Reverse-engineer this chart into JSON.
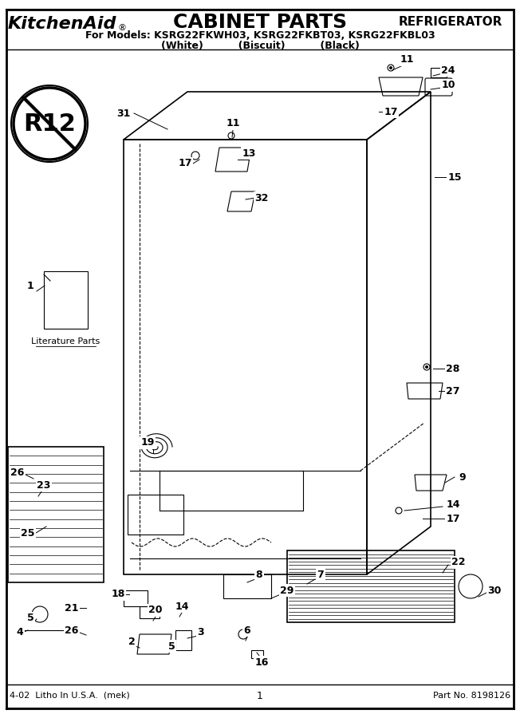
{
  "title": "CABINET PARTS",
  "brand": "KitchenAid.",
  "category": "REFRIGERATOR",
  "subtitle": "For Models: KSRG22FKWH03, KSRG22FKBT03, KSRG22FKBL03",
  "subtitle2": "(White)          (Biscuit)          (Black)",
  "footer_left": "4-02  Litho In U.S.A.  (mek)",
  "footer_center": "1",
  "footer_right": "Part No. 8198126",
  "bg_color": "#ffffff",
  "line_color": "#000000",
  "border_color": "#000000",
  "fig_width": 6.52,
  "fig_height": 9.0,
  "dpi": 100
}
